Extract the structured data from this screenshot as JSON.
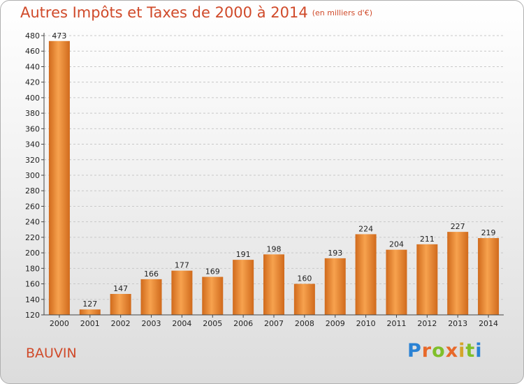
{
  "header": {
    "title": "Autres Impôts et Taxes de 2000 à 2014",
    "unit": "(en milliers d'€)"
  },
  "footer": {
    "place": "BAUVIN",
    "logo": "Proxiti"
  },
  "colors": {
    "bar_light": "#f7a24e",
    "bar_dark": "#d06a1c",
    "title": "#d04a2a",
    "grid": "#c8c8c8"
  },
  "chart_data": {
    "type": "bar",
    "title": "Autres Impôts et Taxes de 2000 à 2014",
    "subtitle": "(en milliers d'€)",
    "categories": [
      "2000",
      "2001",
      "2002",
      "2003",
      "2004",
      "2005",
      "2006",
      "2007",
      "2008",
      "2009",
      "2010",
      "2011",
      "2012",
      "2013",
      "2014"
    ],
    "values": [
      473,
      127,
      147,
      166,
      177,
      169,
      191,
      198,
      160,
      193,
      224,
      204,
      211,
      227,
      219
    ],
    "ylim": [
      120,
      480
    ],
    "yticks": [
      120,
      140,
      160,
      180,
      200,
      220,
      240,
      260,
      280,
      300,
      320,
      340,
      360,
      380,
      400,
      420,
      440,
      460,
      480
    ],
    "grid": true,
    "xlabel": "",
    "ylabel": ""
  }
}
